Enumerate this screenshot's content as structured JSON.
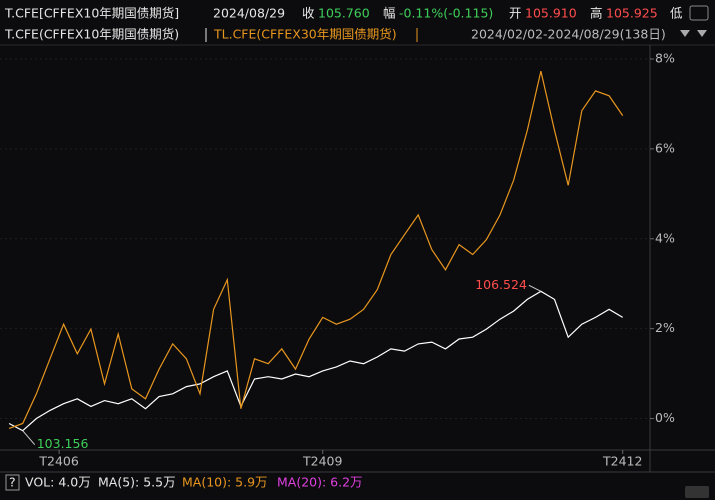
{
  "header": {
    "symbol": "T.CFE[CFFEX10年期国债期货]",
    "date": "2024/08/29",
    "close_label": "收",
    "close": "105.760",
    "change_label": "幅",
    "change": "-0.11%(-0.115)",
    "open_label": "开",
    "open": "105.910",
    "high_label": "高",
    "high": "105.925",
    "low_label": "低",
    "range": "2024/02/02-2024/08/29(138日)"
  },
  "chart_data": {
    "type": "line",
    "x": [
      0,
      3,
      6,
      9,
      12,
      15,
      18,
      21,
      24,
      27,
      30,
      33,
      36,
      39,
      42,
      45,
      48,
      51,
      54,
      57,
      60,
      63,
      66,
      69,
      72,
      75,
      78,
      81,
      84,
      87,
      90,
      93,
      96,
      99,
      102,
      105,
      108,
      111,
      114,
      117,
      120,
      123,
      126,
      129,
      132,
      135
    ],
    "series": [
      {
        "name": "T.CFE(CFFEX10年期国债期货)",
        "color": "#ffffff",
        "values": [
          -0.11,
          -0.27,
          0,
          0.18,
          0.33,
          0.44,
          0.27,
          0.4,
          0.33,
          0.44,
          0.22,
          0.49,
          0.55,
          0.71,
          0.77,
          0.93,
          1.06,
          0.27,
          0.88,
          0.93,
          0.88,
          0.99,
          0.93,
          1.06,
          1.15,
          1.28,
          1.22,
          1.37,
          1.55,
          1.5,
          1.66,
          1.7,
          1.55,
          1.77,
          1.81,
          1.99,
          2.21,
          2.39,
          2.65,
          2.83,
          2.65,
          1.81,
          2.1,
          2.25,
          2.43,
          2.25
        ]
      },
      {
        "name": "TL.CFE(CFFEX30年期国债期货)",
        "color": "#e8961e",
        "values": [
          -0.22,
          -0.11,
          0.55,
          1.33,
          2.1,
          1.44,
          1.99,
          0.77,
          1.88,
          0.66,
          0.44,
          1.1,
          1.66,
          1.33,
          0.55,
          2.43,
          3.09,
          0.22,
          1.33,
          1.22,
          1.55,
          1.1,
          1.77,
          2.25,
          2.1,
          2.21,
          2.43,
          2.87,
          3.65,
          4.09,
          4.53,
          3.76,
          3.31,
          3.87,
          3.65,
          3.98,
          4.53,
          5.3,
          6.41,
          7.73,
          6.41,
          5.19,
          6.85,
          7.29,
          7.18,
          6.74
        ]
      }
    ],
    "annotations": [
      {
        "text": "106.524",
        "color": "#ff4d4d",
        "at": "max"
      },
      {
        "text": "103.156",
        "color": "#3fcf5a",
        "at": "min"
      }
    ],
    "xlim": [
      -2,
      141
    ],
    "xticks": [
      {
        "value": 11,
        "label": "T2406"
      },
      {
        "value": 69,
        "label": "T2409"
      },
      {
        "value": 135,
        "label": "T2412"
      }
    ],
    "ylim": [
      -0.7,
      8.2
    ],
    "yticks": [
      {
        "value": 0,
        "label": "0%"
      },
      {
        "value": 2,
        "label": "2%"
      },
      {
        "value": 4,
        "label": "4%"
      },
      {
        "value": 6,
        "label": "6%"
      },
      {
        "value": 8,
        "label": "8%"
      }
    ],
    "grid": true
  },
  "footer": {
    "help": "?",
    "vol": "VOL: 4.0万",
    "ma5": "MA(5): 5.5万",
    "ma10": "MA(10): 5.9万",
    "ma20": "MA(20): 6.2万"
  }
}
